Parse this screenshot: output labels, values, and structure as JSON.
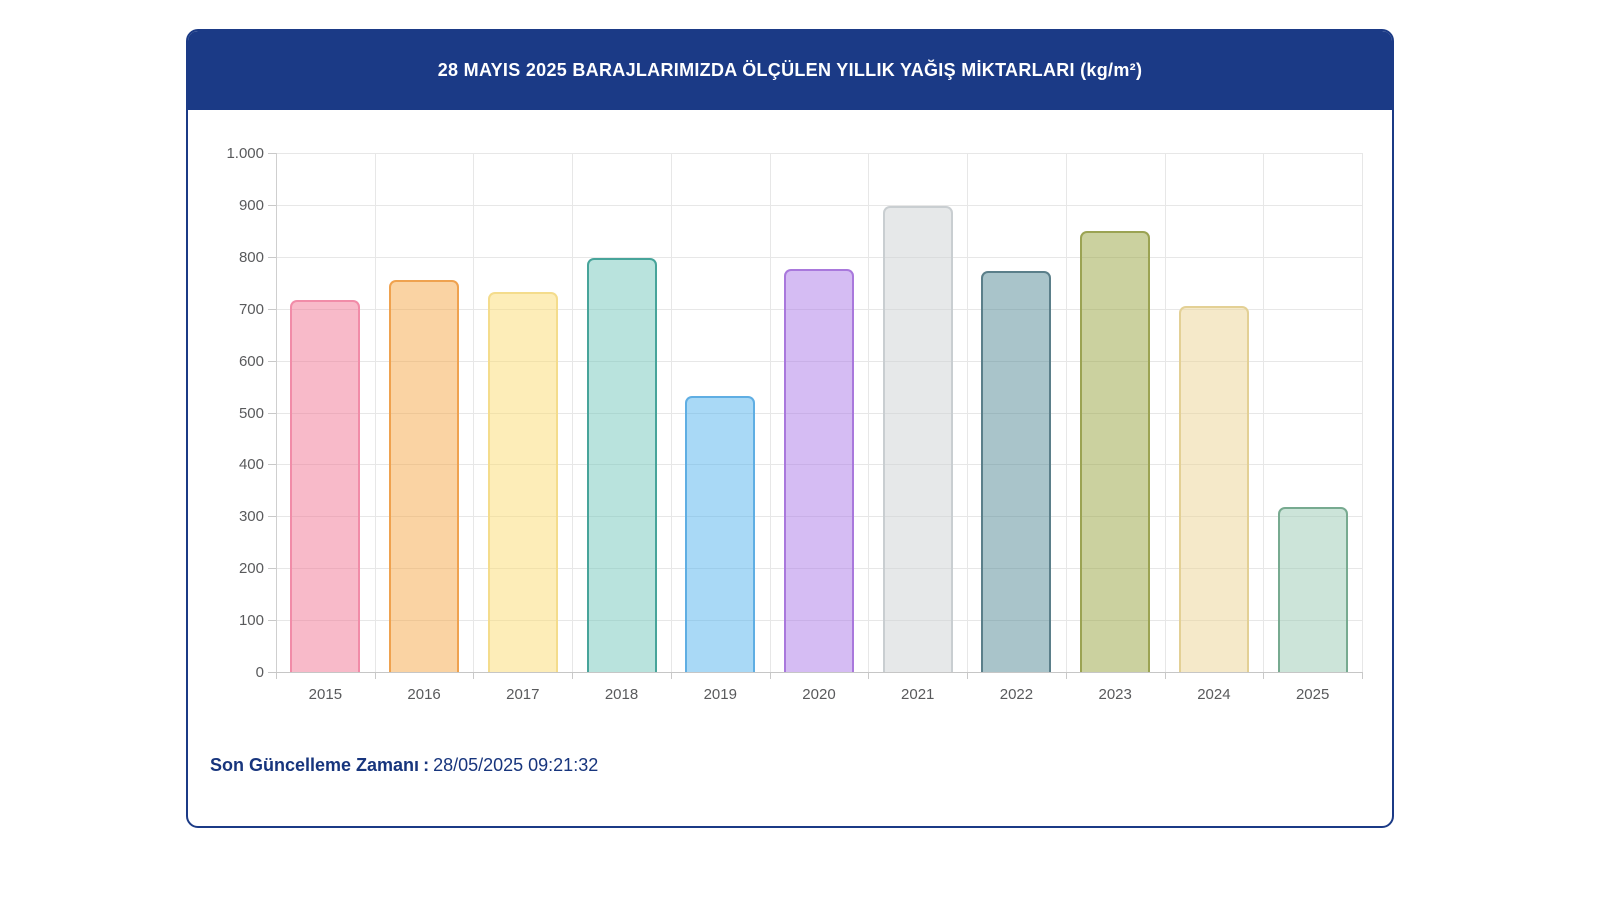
{
  "page": {
    "background": "#FFFFFF"
  },
  "card": {
    "border_color": "#1B3A86",
    "header": {
      "title": "28 MAYIS 2025 BARAJLARIMIZDA ÖLÇÜLEN YILLIK YAĞIŞ MİKTARLARI (kg/m²)",
      "background": "#1B3A86",
      "text_color": "#FFFFFF"
    },
    "footer": {
      "label": "Son Güncelleme Zamanı",
      "separator": ":",
      "value": "28/05/2025 09:21:32",
      "text_color": "#17357D"
    }
  },
  "chart_data": {
    "type": "bar",
    "title": "28 MAYIS 2025 BARAJLARIMIZDA ÖLÇÜLEN YILLIK YAĞIŞ MİKTARLARI (kg/m²)",
    "xlabel": "",
    "ylabel": "",
    "unit": "kg/m²",
    "categories": [
      "2015",
      "2016",
      "2017",
      "2018",
      "2019",
      "2020",
      "2021",
      "2022",
      "2023",
      "2024",
      "2025"
    ],
    "values": [
      717,
      756,
      733,
      797,
      531,
      777,
      897,
      772,
      850,
      706,
      318
    ],
    "ylim": [
      0,
      1000
    ],
    "yticks": [
      0,
      100,
      200,
      300,
      400,
      500,
      600,
      700,
      800,
      900,
      1000
    ],
    "ytick_labels": [
      "0",
      "100",
      "200",
      "300",
      "400",
      "500",
      "600",
      "700",
      "800",
      "900",
      "1.000"
    ],
    "grid": true,
    "legend": false,
    "bar_fills": [
      "rgba(241,117,147,0.5)",
      "rgba(245,167,71,0.5)",
      "rgba(251,219,113,0.5)",
      "rgba(115,199,187,0.5)",
      "rgba(83,179,237,0.5)",
      "rgba(171,121,231,0.5)",
      "rgba(205,209,211,0.5)",
      "rgba(83,137,149,0.5)",
      "rgba(151,163,63,0.5)",
      "rgba(235,211,147,0.5)",
      "rgba(153,201,179,0.5)"
    ],
    "bar_borders": [
      "#F18CA8",
      "#EFA24F",
      "#F4DC8C",
      "#47A49A",
      "#5FAEE3",
      "#A978DC",
      "#C9CED1",
      "#5B7F8A",
      "#9BA353",
      "#E3D095",
      "#77AA90"
    ],
    "axis_label_color": "#595A5C",
    "gridline_color": "#E7E7E7",
    "axis_line_color": "#CFCFCF"
  }
}
